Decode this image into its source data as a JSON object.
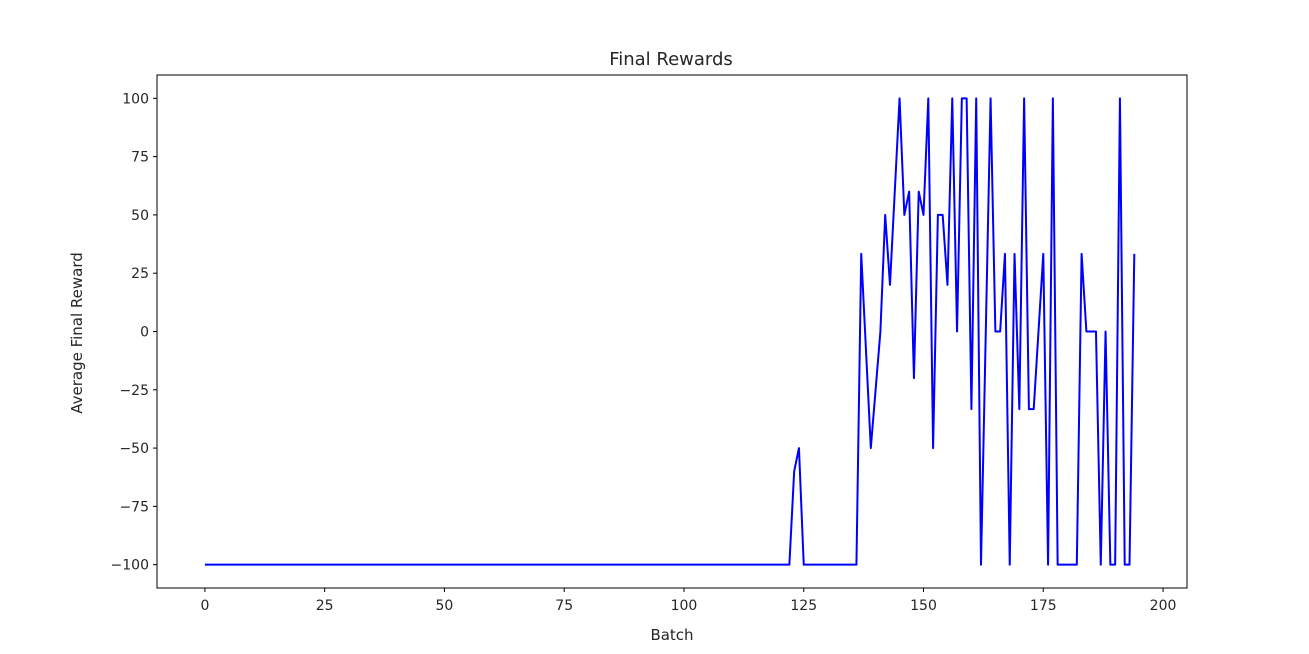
{
  "chart_data": {
    "type": "line",
    "title": "Final Rewards",
    "xlabel": "Batch",
    "ylabel": "Average Final Reward",
    "xlim": [
      -10,
      205
    ],
    "ylim": [
      -110,
      110
    ],
    "x_ticks": [
      0,
      25,
      50,
      75,
      100,
      125,
      150,
      175,
      200
    ],
    "y_ticks": [
      -100,
      -75,
      -50,
      -25,
      0,
      25,
      50,
      75,
      100
    ],
    "grid": false,
    "legend": "none",
    "series": [
      {
        "color": "#0000ff",
        "x": [
          0,
          122,
          123,
          124,
          125,
          136,
          137,
          139,
          141,
          142,
          143,
          145,
          146,
          147,
          148,
          149,
          150,
          151,
          152,
          153,
          154,
          155,
          156,
          157,
          158,
          159,
          160,
          161,
          162,
          164,
          165,
          166,
          167,
          168,
          169,
          170,
          171,
          172,
          173,
          175,
          176,
          177,
          178,
          182,
          183,
          184,
          186,
          187,
          188,
          189,
          190,
          191,
          192,
          193,
          194
        ],
        "y": [
          -100,
          -100,
          -60,
          -50,
          -100,
          -100,
          33.3,
          -50,
          0,
          50,
          20,
          100,
          50,
          60,
          -20,
          60,
          50,
          100,
          -50,
          50,
          50,
          20,
          100,
          0,
          100,
          100,
          -33.3,
          100,
          -100,
          100,
          0,
          0,
          33.3,
          -100,
          33.3,
          -33.3,
          100,
          -33.3,
          -33.3,
          33.3,
          -100,
          100,
          -100,
          -100,
          33.3,
          0,
          0,
          -100,
          0,
          -100,
          -100,
          100,
          -100,
          -100,
          33.3
        ]
      }
    ]
  }
}
